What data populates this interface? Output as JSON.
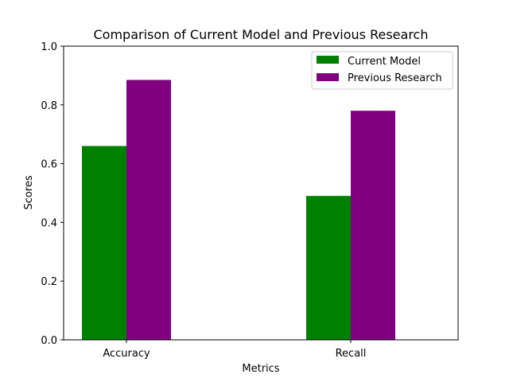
{
  "chart_data": {
    "type": "bar",
    "title": "Comparison of Current Model and Previous Research",
    "xlabel": "Metrics",
    "ylabel": "Scores",
    "categories": [
      "Accuracy",
      "Recall"
    ],
    "series": [
      {
        "name": "Current Model",
        "values": [
          0.66,
          0.49
        ],
        "color": "#008000"
      },
      {
        "name": "Previous Research",
        "values": [
          0.885,
          0.78
        ],
        "color": "#800080"
      }
    ],
    "ylim": [
      0,
      1.0
    ],
    "yticks": [
      "0.0",
      "0.2",
      "0.4",
      "0.6",
      "0.8",
      "1.0"
    ],
    "grid": false,
    "legend_position": "top-right"
  }
}
